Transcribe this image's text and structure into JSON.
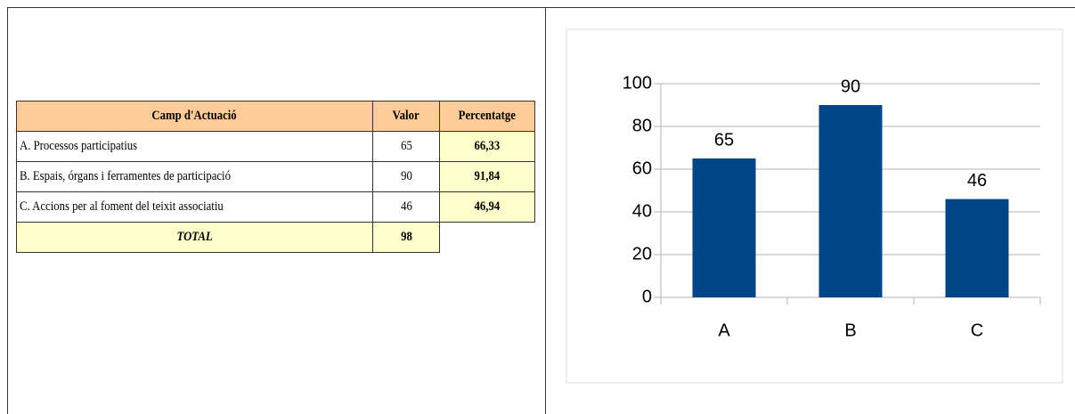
{
  "table": {
    "header": [
      "Camp d'Actuació",
      "Valor",
      "Percentatge"
    ],
    "rows": [
      [
        "A. Processos participatius",
        "65",
        "66,33"
      ],
      [
        "B. Espais, órgans i ferramentes de participació",
        "90",
        "91,84"
      ],
      [
        "C. Accions per al foment del teixit associatiu",
        "46",
        "46,94"
      ]
    ],
    "total": [
      "TOTAL",
      "98"
    ]
  },
  "chart_data": {
    "type": "bar",
    "categories": [
      "A",
      "B",
      "C"
    ],
    "values": [
      65,
      90,
      46
    ],
    "color": "#004586",
    "ylim": [
      0,
      100
    ],
    "yticks": [
      0,
      20,
      40,
      60,
      80,
      100
    ],
    "grid": true
  }
}
